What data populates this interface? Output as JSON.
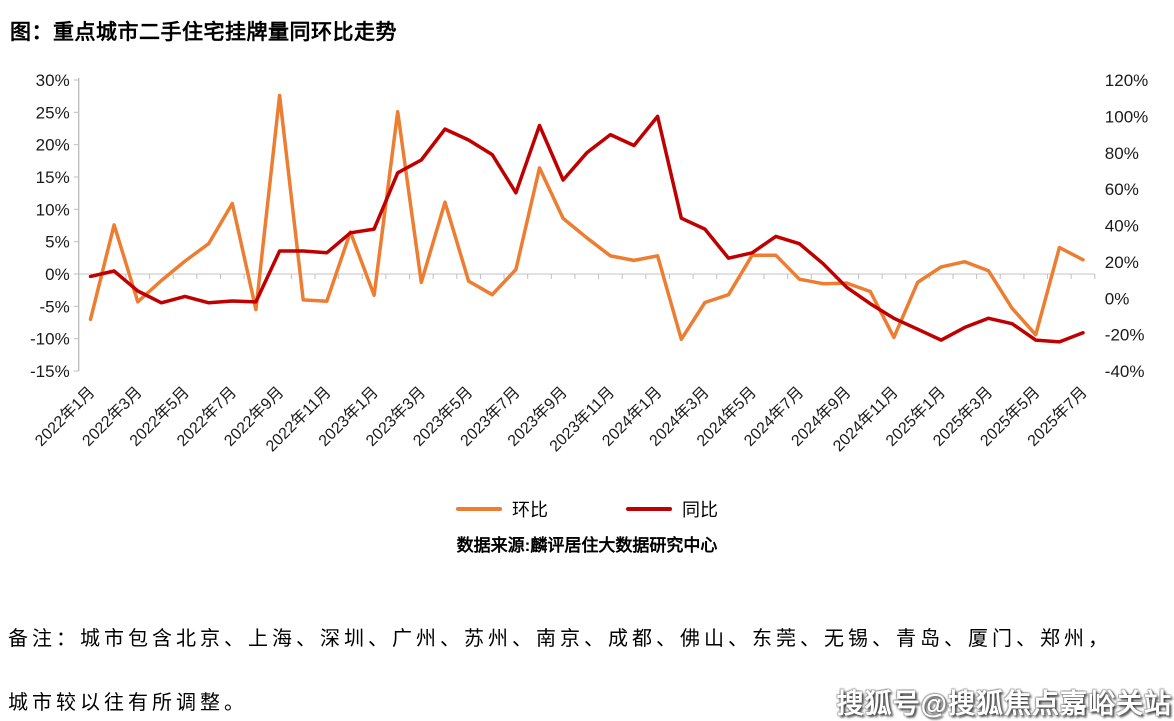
{
  "title": "图：重点城市二手住宅挂牌量同环比走势",
  "legend": [
    {
      "label": "环比",
      "color": "#ED7D31"
    },
    {
      "label": "同比",
      "color": "#C00000"
    }
  ],
  "source": "数据来源:麟评居住大数据研究中心",
  "note_line1": "备注：城市包含北京、上海、深圳、广州、苏州、南京、成都、佛山、东莞、无锡、青岛、厦门、郑州，",
  "note_line2": "城市较以往有所调整。",
  "watermark": "搜狐号@搜狐焦点嘉峪关站",
  "chart_data": {
    "type": "line",
    "title": "图：重点城市二手住宅挂牌量同环比走势",
    "months": [
      "2022年1月",
      "2022年2月",
      "2022年3月",
      "2022年4月",
      "2022年5月",
      "2022年6月",
      "2022年7月",
      "2022年8月",
      "2022年9月",
      "2022年10月",
      "2022年11月",
      "2022年12月",
      "2023年1月",
      "2023年2月",
      "2023年3月",
      "2023年4月",
      "2023年5月",
      "2023年6月",
      "2023年7月",
      "2023年8月",
      "2023年9月",
      "2023年10月",
      "2023年11月",
      "2023年12月",
      "2024年1月",
      "2024年2月",
      "2024年3月",
      "2024年4月",
      "2024年5月",
      "2024年6月",
      "2024年7月",
      "2024年8月",
      "2024年9月",
      "2024年10月",
      "2024年11月",
      "2024年12月",
      "2025年1月",
      "2025年2月",
      "2025年3月",
      "2025年4月",
      "2025年5月",
      "2025年6月",
      "2025年7月"
    ],
    "x_tick_every": 2,
    "series": [
      {
        "name": "环比",
        "axis": "left",
        "color": "#ED7D31",
        "values": [
          -7,
          7.6,
          -4.3,
          -1,
          2,
          4.7,
          10.9,
          -5.5,
          27.6,
          -4,
          -4.2,
          6.5,
          -3.3,
          25.1,
          -1.3,
          11.1,
          -1.1,
          -3.2,
          0.7,
          16.4,
          8.6,
          5.6,
          2.8,
          2.1,
          2.8,
          -10.1,
          -4.4,
          -3.2,
          2.9,
          2.9,
          -0.8,
          -1.5,
          -1.4,
          -2.7,
          -9.8,
          -1.3,
          1.1,
          1.9,
          0.5,
          -5.3,
          -9.4,
          4.1,
          2.2
        ]
      },
      {
        "name": "同比",
        "axis": "right",
        "color": "#C00000",
        "values": [
          12,
          15,
          4,
          -2.5,
          1,
          -2.5,
          -1.5,
          -2,
          26,
          26,
          25,
          36,
          38,
          69,
          76,
          93,
          87,
          79,
          58,
          95,
          65,
          80,
          90,
          84,
          100,
          44,
          38,
          22,
          25,
          34,
          30,
          19,
          6,
          -3,
          -11,
          -17,
          -23,
          -16,
          -11,
          -14,
          -23,
          -24,
          -19
        ]
      }
    ],
    "left_axis": {
      "min": -15,
      "max": 30,
      "step": 5,
      "unit": "%"
    },
    "right_axis": {
      "min": -40,
      "max": 120,
      "step": 20,
      "unit": "%"
    },
    "gridline_at_left_value": 0,
    "legend_position": "bottom",
    "grid": "single horizontal line at left-axis 0%"
  }
}
